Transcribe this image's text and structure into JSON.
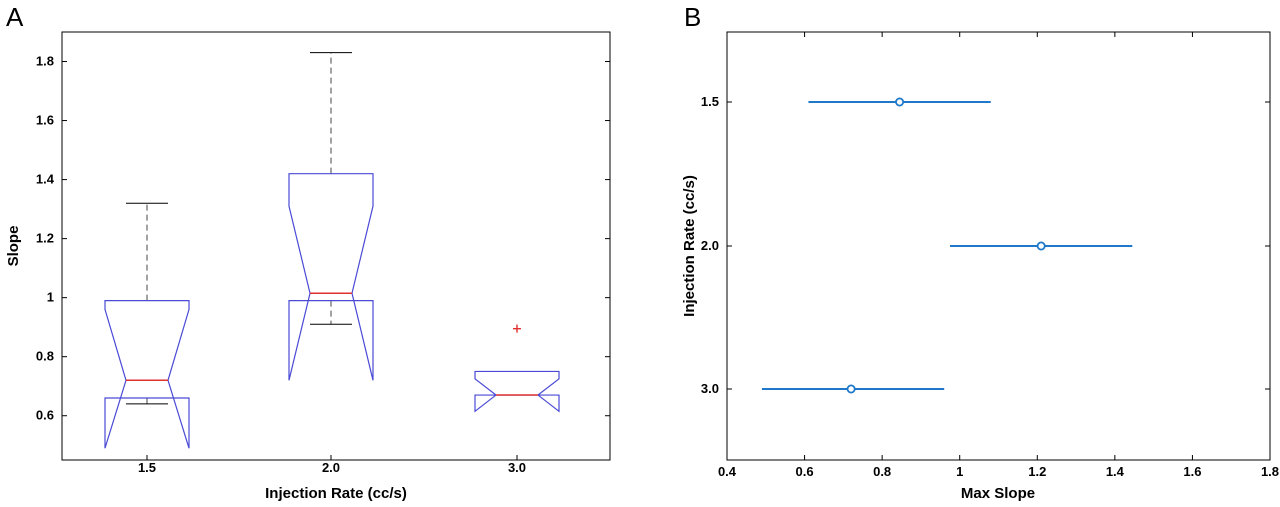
{
  "chart_data": [
    {
      "panel": "A",
      "type": "boxplot",
      "notched": true,
      "xlabel": "Injection Rate (cc/s)",
      "ylabel": "Slope",
      "ylim": [
        0.45,
        1.9
      ],
      "yticks": [
        "0.6",
        "0.8",
        "1",
        "1.2",
        "1.4",
        "1.6",
        "1.8"
      ],
      "ytick_values": [
        0.6,
        0.8,
        1.0,
        1.2,
        1.4,
        1.6,
        1.8
      ],
      "categories": [
        "1.5",
        "2.0",
        "3.0"
      ],
      "boxes": [
        {
          "category": "1.5",
          "whisker_low": 0.64,
          "q1": 0.66,
          "median": 0.72,
          "q3": 0.99,
          "whisker_high": 1.32,
          "notch_low": 0.49,
          "notch_high": 0.96,
          "outliers": []
        },
        {
          "category": "2.0",
          "whisker_low": 0.91,
          "q1": 0.99,
          "median": 1.015,
          "q3": 1.42,
          "whisker_high": 1.83,
          "notch_low": 0.72,
          "notch_high": 1.31,
          "outliers": []
        },
        {
          "category": "3.0",
          "whisker_low": 0.67,
          "q1": 0.67,
          "median": 0.67,
          "q3": 0.75,
          "whisker_high": 0.75,
          "notch_low": 0.615,
          "notch_high": 0.725,
          "outliers": [
            0.895
          ]
        }
      ],
      "colors": {
        "box": "#4a4ad6",
        "median": "#e03030",
        "whisker": "#000000",
        "outlier": "#e03030"
      }
    },
    {
      "panel": "B",
      "type": "interval",
      "xlabel": "Max Slope",
      "ylabel": "Injection Rate (cc/s)",
      "xlim": [
        0.4,
        1.8
      ],
      "xticks": [
        "0.4",
        "0.6",
        "0.8",
        "1",
        "1.2",
        "1.4",
        "1.6",
        "1.8"
      ],
      "xtick_values": [
        0.4,
        0.6,
        0.8,
        1.0,
        1.2,
        1.4,
        1.6,
        1.8
      ],
      "categories": [
        "1.5",
        "2.0",
        "3.0"
      ],
      "intervals": [
        {
          "category": "1.5",
          "mean": 0.845,
          "low": 0.61,
          "high": 1.08
        },
        {
          "category": "2.0",
          "mean": 1.21,
          "low": 0.975,
          "high": 1.445
        },
        {
          "category": "3.0",
          "mean": 0.72,
          "low": 0.49,
          "high": 0.96
        }
      ],
      "colors": {
        "line": "#1f78c8"
      }
    }
  ]
}
